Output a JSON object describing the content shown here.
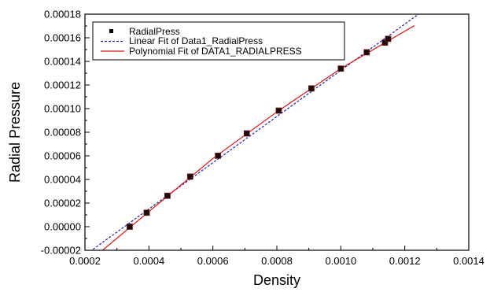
{
  "chart_data": {
    "type": "scatter",
    "xlabel": "Density",
    "ylabel": "Radial Pressure",
    "xlim": [
      0.0002,
      0.0014
    ],
    "ylim": [
      -2e-05,
      0.00018
    ],
    "x_ticks": [
      "0.0002",
      "0.0004",
      "0.0006",
      "0.0008",
      "0.0010",
      "0.0012",
      "0.0014"
    ],
    "y_ticks": [
      "-0.00002",
      "0.00000",
      "0.00002",
      "0.00004",
      "0.00006",
      "0.00008",
      "0.00010",
      "0.00012",
      "0.00014",
      "0.00016",
      "0.00018"
    ],
    "grid": false,
    "legend_position": "top-left",
    "series": [
      {
        "name": "RadialPress",
        "kind": "scatter",
        "marker": "square",
        "color": "#000000",
        "x": [
          0.00034,
          0.000393,
          0.000458,
          0.000529,
          0.000616,
          0.000706,
          0.000806,
          0.000908,
          0.001,
          0.001081,
          0.001138,
          0.001148
        ],
        "y": [
          0.0,
          1.18e-05,
          2.62e-05,
          4.24e-05,
          6.01e-05,
          7.9e-05,
          9.83e-05,
          0.0001171,
          0.0001339,
          0.0001477,
          0.0001559,
          0.0001591
        ]
      },
      {
        "name": "Linear Fit of Data1_RadialPress",
        "kind": "line",
        "style": "dashed",
        "color": "#2222aa",
        "x": [
          0.000215,
          0.00127
        ],
        "y": [
          -2.12e-05,
          0.0001853
        ]
      },
      {
        "name": "Polynomial Fit of DATA1_RADIALPRESS",
        "kind": "line",
        "style": "solid",
        "color": "#dd1111",
        "x": [
          0.000255,
          0.0004,
          0.0006,
          0.0008,
          0.001,
          0.00123
        ],
        "y": [
          -2e-05,
          1.28e-05,
          5.77e-05,
          9.72e-05,
          0.0001339,
          0.0001703
        ]
      }
    ]
  }
}
